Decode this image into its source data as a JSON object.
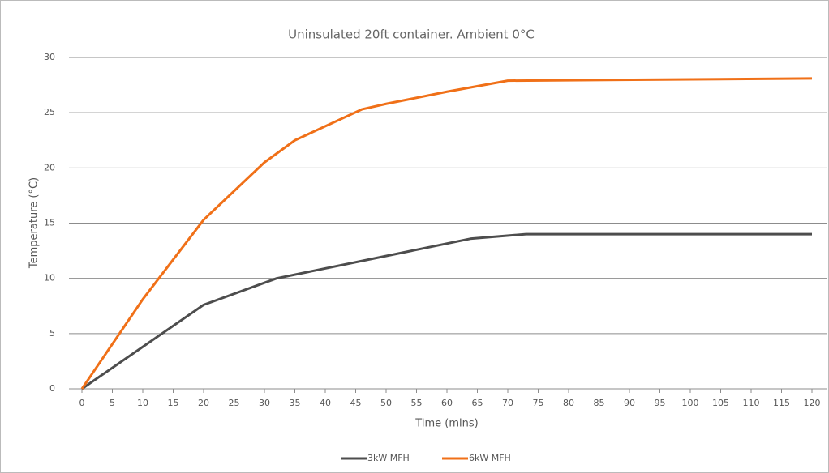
{
  "chart_data": {
    "type": "line",
    "title": "Uninsulated 20ft container. Ambient 0°C",
    "xlabel": "Time (mins)",
    "ylabel": "Temperature (°C)",
    "xlim": [
      0,
      120
    ],
    "xticks": [
      0,
      5,
      10,
      15,
      20,
      25,
      30,
      35,
      40,
      45,
      50,
      55,
      60,
      65,
      70,
      75,
      80,
      85,
      90,
      95,
      100,
      105,
      110,
      115,
      120
    ],
    "ylim": [
      0,
      30
    ],
    "yticks": [
      0,
      5,
      10,
      15,
      20,
      25,
      30
    ],
    "grid": true,
    "legend": "bottom",
    "series": [
      {
        "name": "3kW MFH",
        "color": "#4d4d4d",
        "x": [
          0,
          20,
          32,
          64,
          73,
          120
        ],
        "values": [
          0,
          7.6,
          10,
          13.6,
          14,
          14
        ]
      },
      {
        "name": "6kW MFH",
        "color": "#f07018",
        "x": [
          0,
          10,
          20,
          30,
          35,
          46,
          50,
          60,
          70,
          120
        ],
        "values": [
          0,
          8.1,
          15.3,
          20.5,
          22.5,
          25.3,
          25.8,
          26.9,
          27.9,
          28.1
        ]
      }
    ]
  }
}
